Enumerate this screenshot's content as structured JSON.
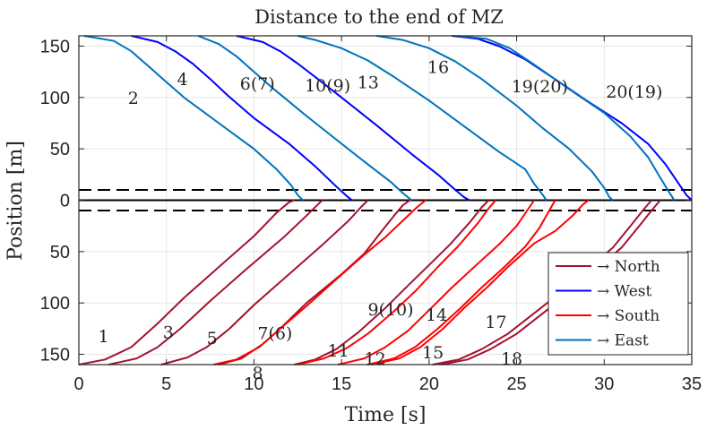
{
  "chart_data": {
    "type": "line",
    "title": "Distance to the end of MZ",
    "xlabel": "Time [s]",
    "ylabel": "Position [m]",
    "xlim": [
      0,
      35
    ],
    "ylim": [
      -160,
      160
    ],
    "xticks": [
      0,
      5,
      10,
      15,
      20,
      25,
      30,
      35
    ],
    "yticks": [
      {
        "value": 150,
        "label": "150"
      },
      {
        "value": 100,
        "label": "100"
      },
      {
        "value": 50,
        "label": "50"
      },
      {
        "value": 0,
        "label": "0"
      },
      {
        "value": -50,
        "label": "50"
      },
      {
        "value": -100,
        "label": "100"
      },
      {
        "value": -150,
        "label": "150"
      }
    ],
    "grid": true,
    "reference_lines": [
      {
        "y": 10,
        "style": "dashed",
        "color": "#000000"
      },
      {
        "y": 0,
        "style": "solid",
        "color": "#000000"
      },
      {
        "y": -10,
        "style": "dashed",
        "color": "#000000"
      }
    ],
    "legend": {
      "position": "bottom-right",
      "entries": [
        {
          "label": "→ North",
          "color": "#a2142f"
        },
        {
          "label": "→ West",
          "color": "#0000ff"
        },
        {
          "label": "→ South",
          "color": "#ff0000"
        },
        {
          "label": "→ East",
          "color": "#0072bd"
        }
      ]
    },
    "series": [
      {
        "name": "2",
        "direction": "East",
        "color": "#0072bd",
        "points": [
          [
            0.3,
            160
          ],
          [
            2,
            155
          ],
          [
            3,
            145
          ],
          [
            4,
            130
          ],
          [
            5,
            115
          ],
          [
            6,
            100
          ],
          [
            8,
            75
          ],
          [
            10,
            50
          ],
          [
            11.3,
            30
          ],
          [
            12.1,
            15
          ],
          [
            12.5,
            5
          ],
          [
            12.8,
            0
          ]
        ]
      },
      {
        "name": "4",
        "direction": "West",
        "color": "#0000ff",
        "points": [
          [
            3,
            160
          ],
          [
            4.5,
            154
          ],
          [
            5.5,
            145
          ],
          [
            6.5,
            133
          ],
          [
            7.5,
            118
          ],
          [
            8.5,
            102
          ],
          [
            10,
            80
          ],
          [
            12,
            55
          ],
          [
            13.5,
            33
          ],
          [
            14.6,
            15
          ],
          [
            15.3,
            4
          ],
          [
            15.6,
            0
          ]
        ]
      },
      {
        "name": "6(7)",
        "direction": "East",
        "color": "#0072bd",
        "points": [
          [
            6.8,
            160
          ],
          [
            8,
            152
          ],
          [
            9,
            140
          ],
          [
            10,
            125
          ],
          [
            11,
            110
          ],
          [
            13,
            82
          ],
          [
            15,
            55
          ],
          [
            16.5,
            35
          ],
          [
            17.8,
            18
          ],
          [
            18.5,
            7
          ],
          [
            19,
            0
          ]
        ]
      },
      {
        "name": "10(9)",
        "direction": "West",
        "color": "#0000ff",
        "points": [
          [
            9,
            160
          ],
          [
            10.5,
            154
          ],
          [
            11.5,
            145
          ],
          [
            12.5,
            133
          ],
          [
            13.5,
            120
          ],
          [
            15,
            100
          ],
          [
            17,
            73
          ],
          [
            19,
            45
          ],
          [
            20.5,
            25
          ],
          [
            21.5,
            10
          ],
          [
            22,
            3
          ],
          [
            22.3,
            0
          ]
        ]
      },
      {
        "name": "13",
        "direction": "East",
        "color": "#0072bd",
        "points": [
          [
            12.5,
            160
          ],
          [
            13.5,
            156
          ],
          [
            15,
            148
          ],
          [
            16.5,
            136
          ],
          [
            18,
            120
          ],
          [
            20,
            97
          ],
          [
            22,
            72
          ],
          [
            24,
            47
          ],
          [
            25.5,
            30
          ],
          [
            26,
            16
          ],
          [
            26.5,
            5
          ],
          [
            26.7,
            0
          ]
        ]
      },
      {
        "name": "16",
        "direction": "East",
        "color": "#0072bd",
        "points": [
          [
            17,
            160
          ],
          [
            18.5,
            156
          ],
          [
            20,
            148
          ],
          [
            21.5,
            135
          ],
          [
            23,
            118
          ],
          [
            25,
            92
          ],
          [
            26.5,
            70
          ],
          [
            28,
            50
          ],
          [
            29.3,
            28
          ],
          [
            30,
            12
          ],
          [
            30.3,
            3
          ],
          [
            30.5,
            0
          ]
        ]
      },
      {
        "name": "19(20)",
        "direction": "West",
        "color": "#0000ff",
        "points": [
          [
            21.3,
            160
          ],
          [
            22.8,
            157
          ],
          [
            24,
            150
          ],
          [
            25.5,
            137
          ],
          [
            27,
            120
          ],
          [
            29,
            97
          ],
          [
            31,
            75
          ],
          [
            32.5,
            55
          ],
          [
            33.5,
            35
          ],
          [
            34.3,
            15
          ],
          [
            34.7,
            5
          ],
          [
            35,
            0
          ]
        ]
      },
      {
        "name": "20(19)",
        "direction": "East",
        "color": "#0072bd",
        "points": [
          [
            21.6,
            160
          ],
          [
            23.3,
            157
          ],
          [
            24.6,
            148
          ],
          [
            26,
            132
          ],
          [
            28,
            108
          ],
          [
            30,
            85
          ],
          [
            31.5,
            62
          ],
          [
            32.5,
            42
          ],
          [
            33.2,
            22
          ],
          [
            33.7,
            8
          ],
          [
            34,
            0
          ]
        ]
      },
      {
        "name": "1",
        "direction": "North",
        "color": "#a2142f",
        "points": [
          [
            0,
            -160
          ],
          [
            1.5,
            -155
          ],
          [
            3,
            -143
          ],
          [
            4.5,
            -120
          ],
          [
            6,
            -95
          ],
          [
            8,
            -65
          ],
          [
            10,
            -35
          ],
          [
            11.3,
            -12
          ],
          [
            12,
            -2
          ],
          [
            12.3,
            0
          ]
        ]
      },
      {
        "name": "3",
        "direction": "North",
        "color": "#a2142f",
        "points": [
          [
            1.7,
            -160
          ],
          [
            3.3,
            -154
          ],
          [
            4.5,
            -143
          ],
          [
            5.8,
            -125
          ],
          [
            7.5,
            -98
          ],
          [
            9.5,
            -68
          ],
          [
            11.7,
            -36
          ],
          [
            13,
            -15
          ],
          [
            13.6,
            -5
          ],
          [
            13.9,
            0
          ]
        ]
      },
      {
        "name": "5",
        "direction": "North",
        "color": "#a2142f",
        "points": [
          [
            4.7,
            -160
          ],
          [
            6.2,
            -153
          ],
          [
            7.3,
            -143
          ],
          [
            8.6,
            -125
          ],
          [
            10,
            -102
          ],
          [
            12,
            -72
          ],
          [
            14,
            -42
          ],
          [
            15.4,
            -20
          ],
          [
            16.1,
            -7
          ],
          [
            16.5,
            0
          ]
        ]
      },
      {
        "name": "7(6)",
        "direction": "North",
        "color": "#a2142f",
        "points": [
          [
            8,
            -160
          ],
          [
            9.3,
            -154
          ],
          [
            10.5,
            -140
          ],
          [
            11.5,
            -125
          ],
          [
            13,
            -100
          ],
          [
            15,
            -72
          ],
          [
            16.3,
            -52
          ],
          [
            17.3,
            -30
          ],
          [
            18,
            -15
          ],
          [
            18.5,
            -5
          ],
          [
            18.9,
            0
          ]
        ]
      },
      {
        "name": "8",
        "direction": "South",
        "color": "#ff0000",
        "points": [
          [
            7.7,
            -160
          ],
          [
            9,
            -155
          ],
          [
            10.3,
            -143
          ],
          [
            11.5,
            -125
          ],
          [
            13,
            -103
          ],
          [
            14.5,
            -80
          ],
          [
            16.3,
            -53
          ],
          [
            17.5,
            -36
          ],
          [
            18.5,
            -20
          ],
          [
            19.3,
            -7
          ],
          [
            19.8,
            0
          ]
        ]
      },
      {
        "name": "9(10)",
        "direction": "North",
        "color": "#a2142f",
        "points": [
          [
            12.3,
            -160
          ],
          [
            13.5,
            -155
          ],
          [
            14.7,
            -145
          ],
          [
            16,
            -128
          ],
          [
            17.5,
            -105
          ],
          [
            18.8,
            -83
          ],
          [
            20,
            -63
          ],
          [
            21.2,
            -43
          ],
          [
            22.3,
            -22
          ],
          [
            23,
            -7
          ],
          [
            23.4,
            0
          ]
        ]
      },
      {
        "name": "11",
        "direction": "South",
        "color": "#ff0000",
        "points": [
          [
            12.5,
            -160
          ],
          [
            14,
            -154
          ],
          [
            15.3,
            -144
          ],
          [
            16.5,
            -130
          ],
          [
            18,
            -108
          ],
          [
            19.3,
            -87
          ],
          [
            20.5,
            -65
          ],
          [
            21.7,
            -44
          ],
          [
            22.8,
            -22
          ],
          [
            23.4,
            -8
          ],
          [
            23.8,
            0
          ]
        ]
      },
      {
        "name": "12",
        "direction": "South",
        "color": "#ff0000",
        "points": [
          [
            14.8,
            -160
          ],
          [
            16.3,
            -154
          ],
          [
            17.5,
            -143
          ],
          [
            18.8,
            -127
          ],
          [
            20,
            -107
          ],
          [
            21.3,
            -85
          ],
          [
            22.7,
            -63
          ],
          [
            24,
            -43
          ],
          [
            25,
            -25
          ],
          [
            25.6,
            -10
          ],
          [
            26,
            0
          ]
        ]
      },
      {
        "name": "14",
        "direction": "South",
        "color": "#ff0000",
        "points": [
          [
            16.5,
            -160
          ],
          [
            18,
            -154
          ],
          [
            19.2,
            -143
          ],
          [
            20.5,
            -125
          ],
          [
            21.8,
            -105
          ],
          [
            23,
            -85
          ],
          [
            24.3,
            -65
          ],
          [
            25.5,
            -45
          ],
          [
            26.3,
            -27
          ],
          [
            26.8,
            -12
          ],
          [
            27.2,
            0
          ]
        ]
      },
      {
        "name": "15",
        "direction": "South",
        "color": "#ff0000",
        "points": [
          [
            16.7,
            -160
          ],
          [
            18.3,
            -154
          ],
          [
            19.5,
            -143
          ],
          [
            20.8,
            -125
          ],
          [
            22,
            -105
          ],
          [
            23.3,
            -85
          ],
          [
            24.5,
            -65
          ],
          [
            26,
            -42
          ],
          [
            27.2,
            -30
          ],
          [
            28.2,
            -15
          ],
          [
            28.8,
            -4
          ],
          [
            29.1,
            0
          ]
        ]
      },
      {
        "name": "17",
        "direction": "North",
        "color": "#a2142f",
        "points": [
          [
            20.2,
            -160
          ],
          [
            21.7,
            -155
          ],
          [
            23,
            -145
          ],
          [
            24.5,
            -130
          ],
          [
            26,
            -110
          ],
          [
            27.5,
            -90
          ],
          [
            29,
            -68
          ],
          [
            30.5,
            -46
          ],
          [
            31.5,
            -25
          ],
          [
            32.2,
            -10
          ],
          [
            32.7,
            0
          ]
        ]
      },
      {
        "name": "18",
        "direction": "North",
        "color": "#a2142f",
        "points": [
          [
            20.7,
            -160
          ],
          [
            22.2,
            -155
          ],
          [
            23.5,
            -145
          ],
          [
            25,
            -130
          ],
          [
            26.5,
            -110
          ],
          [
            28,
            -90
          ],
          [
            29.5,
            -68
          ],
          [
            31,
            -46
          ],
          [
            32,
            -25
          ],
          [
            32.7,
            -10
          ],
          [
            33.2,
            0
          ]
        ]
      }
    ],
    "annotations": [
      {
        "text": "2",
        "x": 2.8,
        "y": 100
      },
      {
        "text": "4",
        "x": 5.6,
        "y": 118
      },
      {
        "text": "6(7)",
        "x": 9.2,
        "y": 114
      },
      {
        "text": "10(9)",
        "x": 12.9,
        "y": 112
      },
      {
        "text": "13",
        "x": 15.9,
        "y": 115
      },
      {
        "text": "16",
        "x": 19.9,
        "y": 130
      },
      {
        "text": "19(20)",
        "x": 24.7,
        "y": 111
      },
      {
        "text": "20(19)",
        "x": 30.1,
        "y": 106
      },
      {
        "text": "1",
        "x": 1.1,
        "y": -132
      },
      {
        "text": "3",
        "x": 4.8,
        "y": -128
      },
      {
        "text": "5",
        "x": 7.3,
        "y": -134
      },
      {
        "text": "7(6)",
        "x": 10.2,
        "y": -129
      },
      {
        "text": "8",
        "x": 9.9,
        "y": -168
      },
      {
        "text": "9(10)",
        "x": 16.5,
        "y": -106
      },
      {
        "text": "11",
        "x": 14.2,
        "y": -146
      },
      {
        "text": "12",
        "x": 16.3,
        "y": -154
      },
      {
        "text": "14",
        "x": 19.8,
        "y": -111
      },
      {
        "text": "15",
        "x": 19.6,
        "y": -148
      },
      {
        "text": "17",
        "x": 23.2,
        "y": -118
      },
      {
        "text": "18",
        "x": 24.1,
        "y": -154
      }
    ]
  }
}
